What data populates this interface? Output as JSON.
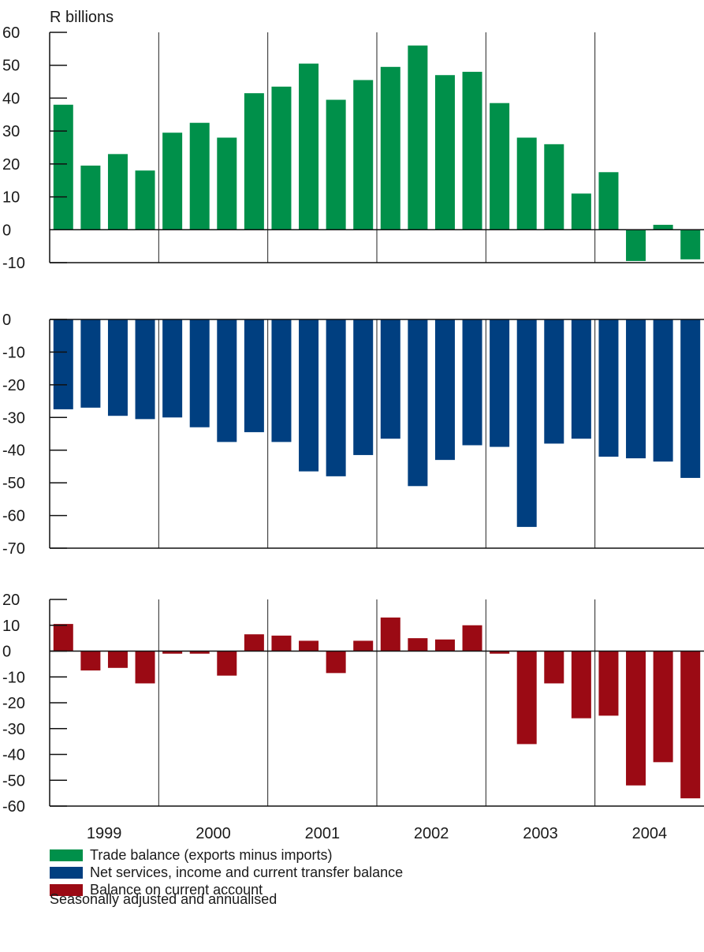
{
  "chart_data": {
    "type": "bar",
    "unit_label": "R billions",
    "categories": [
      "1999 Q1",
      "1999 Q2",
      "1999 Q3",
      "1999 Q4",
      "2000 Q1",
      "2000 Q2",
      "2000 Q3",
      "2000 Q4",
      "2001 Q1",
      "2001 Q2",
      "2001 Q3",
      "2001 Q4",
      "2002 Q1",
      "2002 Q2",
      "2002 Q3",
      "2002 Q4",
      "2003 Q1",
      "2003 Q2",
      "2003 Q3",
      "2003 Q4",
      "2004 Q1",
      "2004 Q2",
      "2004 Q3",
      "2004 Q4"
    ],
    "year_labels": [
      "1999",
      "2000",
      "2001",
      "2002",
      "2003",
      "2004"
    ],
    "panels": [
      {
        "series_name": "Trade balance (exports minus imports)",
        "color": "#00904a",
        "ylim": [
          -10,
          60
        ],
        "ticks": [
          60,
          50,
          40,
          30,
          20,
          10,
          0,
          -10
        ],
        "values": [
          38,
          19.5,
          23,
          18,
          29.5,
          32.5,
          28,
          41.5,
          43.5,
          50.5,
          39.5,
          45.5,
          49.5,
          56,
          47,
          48,
          38.5,
          28,
          26,
          11,
          17.5,
          -9.5,
          1.5,
          -9
        ]
      },
      {
        "series_name": "Net services, income and current transfer balance",
        "color": "#003f80",
        "ylim": [
          -70,
          0
        ],
        "ticks": [
          0,
          -10,
          -20,
          -30,
          -40,
          -50,
          -60,
          -70
        ],
        "values": [
          -27.5,
          -27,
          -29.5,
          -30.5,
          -30,
          -33,
          -37.5,
          -34.5,
          -37.5,
          -46.5,
          -48,
          -41.5,
          -36.5,
          -51,
          -43,
          -38.5,
          -39,
          -63.5,
          -38,
          -36.5,
          -42,
          -42.5,
          -43.5,
          -48.5
        ]
      },
      {
        "series_name": "Balance on current account",
        "color": "#9b0a14",
        "ylim": [
          -60,
          20
        ],
        "ticks": [
          20,
          10,
          0,
          -10,
          -20,
          -30,
          -40,
          -50,
          -60
        ],
        "values": [
          10.5,
          -7.5,
          -6.5,
          -12.5,
          -1,
          -1,
          -9.5,
          6.5,
          6,
          4,
          -8.5,
          4,
          13,
          5,
          4.5,
          10,
          -1,
          -36,
          -12.5,
          -26,
          -25,
          -52,
          -43,
          -57
        ]
      }
    ],
    "note": "Seasonally adjusted and annualised"
  }
}
